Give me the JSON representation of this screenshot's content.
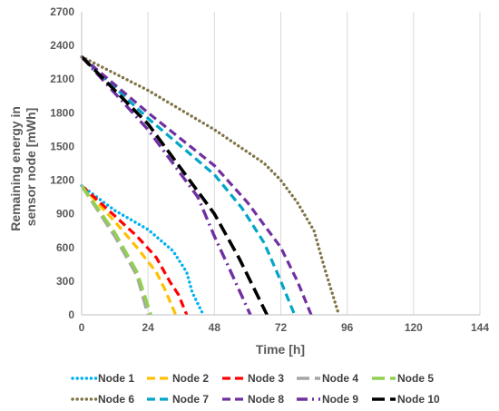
{
  "chart_data": {
    "type": "line",
    "title": "",
    "xlabel": "Time [h]",
    "ylabel": [
      "Remaining energy in",
      "sensor node [mWh]"
    ],
    "xlim": [
      0,
      144
    ],
    "ylim": [
      0,
      2700
    ],
    "xticks": [
      0,
      24,
      48,
      72,
      96,
      120,
      144
    ],
    "yticks": [
      0,
      300,
      600,
      900,
      1200,
      1500,
      1800,
      2100,
      2400,
      2700
    ],
    "grid": "vertical",
    "legend_position": "bottom",
    "series": [
      {
        "name": "Node 1",
        "color": "#00B0F0",
        "dash": "dot",
        "points": [
          [
            0,
            1150
          ],
          [
            12,
            930
          ],
          [
            24,
            760
          ],
          [
            33,
            570
          ],
          [
            38,
            380
          ],
          [
            40,
            200
          ],
          [
            44,
            0
          ]
        ]
      },
      {
        "name": "Node 2",
        "color": "#FFC000",
        "dash": "dash",
        "points": [
          [
            0,
            1150
          ],
          [
            12,
            830
          ],
          [
            20,
            600
          ],
          [
            27,
            380
          ],
          [
            30,
            230
          ],
          [
            34,
            0
          ]
        ]
      },
      {
        "name": "Node 3",
        "color": "#FF0000",
        "dash": "dash",
        "points": [
          [
            0,
            1150
          ],
          [
            12,
            880
          ],
          [
            20,
            700
          ],
          [
            27,
            510
          ],
          [
            32,
            290
          ],
          [
            35,
            180
          ],
          [
            38,
            0
          ]
        ]
      },
      {
        "name": "Node 4",
        "color": "#A6A6A6",
        "dash": "longdash",
        "points": [
          [
            0,
            1150
          ],
          [
            12,
            700
          ],
          [
            20,
            350
          ],
          [
            24,
            0
          ]
        ]
      },
      {
        "name": "Node 5",
        "color": "#92D050",
        "dash": "longdash",
        "points": [
          [
            0,
            1150
          ],
          [
            12,
            730
          ],
          [
            20,
            380
          ],
          [
            25,
            0
          ]
        ]
      },
      {
        "name": "Node 6",
        "color": "#7F7446",
        "dash": "dot",
        "points": [
          [
            0,
            2300
          ],
          [
            24,
            2000
          ],
          [
            48,
            1650
          ],
          [
            66,
            1350
          ],
          [
            72,
            1200
          ],
          [
            78,
            1000
          ],
          [
            84,
            750
          ],
          [
            88,
            400
          ],
          [
            93,
            0
          ]
        ]
      },
      {
        "name": "Node 7",
        "color": "#00A5C8",
        "dash": "dash",
        "points": [
          [
            0,
            2300
          ],
          [
            24,
            1750
          ],
          [
            48,
            1250
          ],
          [
            58,
            950
          ],
          [
            66,
            640
          ],
          [
            72,
            300
          ],
          [
            77,
            0
          ]
        ]
      },
      {
        "name": "Node 8",
        "color": "#7030A0",
        "dash": "dash",
        "points": [
          [
            0,
            2300
          ],
          [
            24,
            1800
          ],
          [
            48,
            1330
          ],
          [
            60,
            1000
          ],
          [
            72,
            600
          ],
          [
            78,
            300
          ],
          [
            83,
            0
          ]
        ]
      },
      {
        "name": "Node 9",
        "color": "#7030A0",
        "dash": "dashdot",
        "points": [
          [
            0,
            2300
          ],
          [
            24,
            1650
          ],
          [
            42,
            1050
          ],
          [
            48,
            700
          ],
          [
            54,
            380
          ],
          [
            61,
            0
          ]
        ]
      },
      {
        "name": "Node 10",
        "color": "#000000",
        "dash": "longdash",
        "points": [
          [
            0,
            2300
          ],
          [
            24,
            1700
          ],
          [
            36,
            1300
          ],
          [
            48,
            900
          ],
          [
            57,
            500
          ],
          [
            67,
            0
          ]
        ]
      }
    ]
  }
}
